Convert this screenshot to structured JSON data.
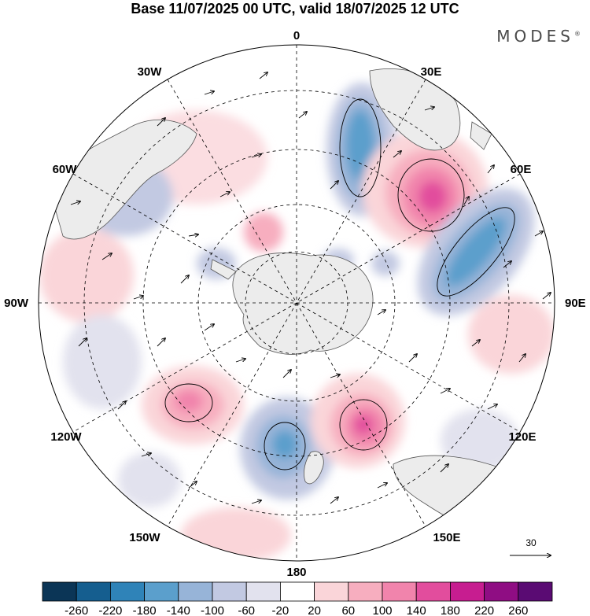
{
  "title": "Base 11/07/2025 00 UTC, valid 18/07/2025 12 UTC",
  "brand": {
    "name": "MODES",
    "mark": "®"
  },
  "longitude_labels": {
    "lon_0": "0",
    "lon_30e": "30E",
    "lon_60e": "60E",
    "lon_90e": "90E",
    "lon_120e": "120E",
    "lon_150e": "150E",
    "lon_180": "180",
    "lon_150w": "150W",
    "lon_120w": "120W",
    "lon_90w": "90W",
    "lon_60w": "60W",
    "lon_30w": "30W"
  },
  "vector_scale": {
    "value": "30"
  },
  "colorbar": {
    "ticks": [
      "-260",
      "-220",
      "-180",
      "-140",
      "-100",
      "-60",
      "-20",
      "20",
      "60",
      "100",
      "140",
      "180",
      "220",
      "260"
    ],
    "colors": [
      "#0b3556",
      "#155e8f",
      "#2f83b8",
      "#5b9fcc",
      "#97b4d8",
      "#c2c9e2",
      "#e2e2ee",
      "#ffffff",
      "#fad5d9",
      "#f7aebf",
      "#f184ac",
      "#e24d9d",
      "#c71d90",
      "#8f0d83",
      "#5a0b73"
    ]
  },
  "map": {
    "projection": "south polar stereographic",
    "land_color": "#ececec",
    "coast_color": "#555555",
    "grid_color": "#000000",
    "anomalies": [
      {
        "id": "a1",
        "value": -180
      },
      {
        "id": "a2",
        "value": 180
      },
      {
        "id": "a3",
        "value": -180
      },
      {
        "id": "a4",
        "value": 100
      },
      {
        "id": "a5",
        "value": 140
      },
      {
        "id": "a6",
        "value": -180
      },
      {
        "id": "a7",
        "value": 180
      },
      {
        "id": "a8",
        "value": 60
      },
      {
        "id": "a9",
        "value": -100
      },
      {
        "id": "a10",
        "value": 60
      },
      {
        "id": "a11",
        "value": 60
      },
      {
        "id": "a12",
        "value": -60
      }
    ]
  }
}
